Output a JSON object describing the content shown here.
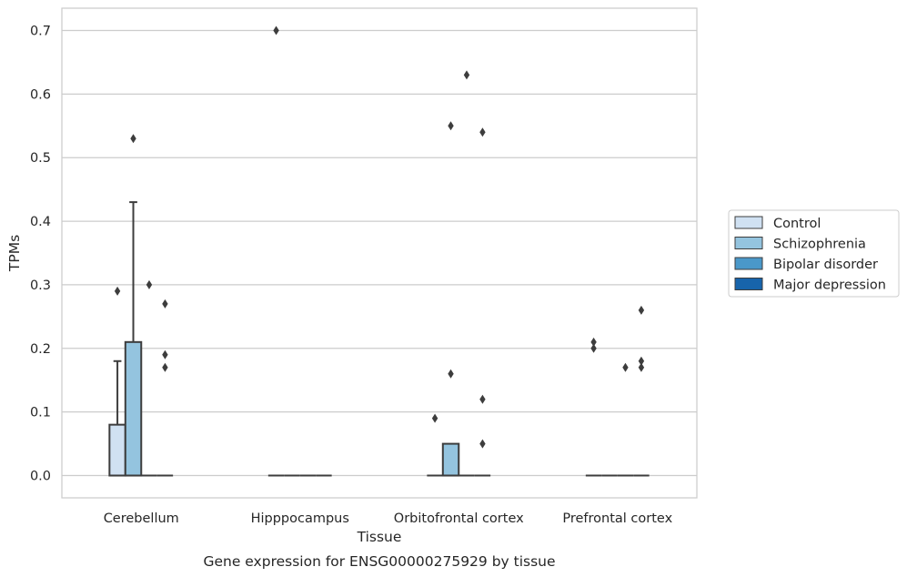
{
  "chart_data": {
    "type": "box",
    "xlabel": "Tissue",
    "ylabel": "TPMs",
    "caption": "Gene expression for ENSG00000275929 by tissue",
    "ylim": [
      -0.035,
      0.735
    ],
    "yticks": [
      0.0,
      0.1,
      0.2,
      0.3,
      0.4,
      0.5,
      0.6,
      0.7
    ],
    "ytick_labels": [
      "0.0",
      "0.1",
      "0.2",
      "0.3",
      "0.4",
      "0.5",
      "0.6",
      "0.7"
    ],
    "grid": "horizontal",
    "legend_position": "right",
    "categories": [
      "Cerebellum",
      "Hipppocampus",
      "Orbitofrontal cortex",
      "Prefrontal cortex"
    ],
    "series": [
      {
        "name": "Control",
        "color": "#d0e1f2",
        "boxes": [
          {
            "q1": 0.0,
            "median": 0.0,
            "q3": 0.08,
            "whisker_low": 0.0,
            "whisker_high": 0.18,
            "outliers": [
              0.29
            ]
          },
          {
            "q1": 0.0,
            "median": 0.0,
            "q3": 0.0,
            "whisker_low": 0.0,
            "whisker_high": 0.0,
            "outliers": [
              0.7
            ]
          },
          {
            "q1": 0.0,
            "median": 0.0,
            "q3": 0.0,
            "whisker_low": 0.0,
            "whisker_high": 0.0,
            "outliers": [
              0.09
            ]
          },
          {
            "q1": 0.0,
            "median": 0.0,
            "q3": 0.0,
            "whisker_low": 0.0,
            "whisker_high": 0.0,
            "outliers": [
              0.2,
              0.21
            ]
          }
        ]
      },
      {
        "name": "Schizophrenia",
        "color": "#94c4df",
        "boxes": [
          {
            "q1": 0.0,
            "median": 0.0,
            "q3": 0.21,
            "whisker_low": 0.0,
            "whisker_high": 0.43,
            "outliers": [
              0.53
            ]
          },
          {
            "q1": 0.0,
            "median": 0.0,
            "q3": 0.0,
            "whisker_low": 0.0,
            "whisker_high": 0.0,
            "outliers": []
          },
          {
            "q1": 0.0,
            "median": 0.0,
            "q3": 0.05,
            "whisker_low": 0.0,
            "whisker_high": 0.05,
            "outliers": [
              0.16,
              0.55
            ]
          },
          {
            "q1": 0.0,
            "median": 0.0,
            "q3": 0.0,
            "whisker_low": 0.0,
            "whisker_high": 0.0,
            "outliers": []
          }
        ]
      },
      {
        "name": "Bipolar disorder",
        "color": "#4a98c9",
        "boxes": [
          {
            "q1": 0.0,
            "median": 0.0,
            "q3": 0.0,
            "whisker_low": 0.0,
            "whisker_high": 0.0,
            "outliers": [
              0.3
            ]
          },
          {
            "q1": 0.0,
            "median": 0.0,
            "q3": 0.0,
            "whisker_low": 0.0,
            "whisker_high": 0.0,
            "outliers": []
          },
          {
            "q1": 0.0,
            "median": 0.0,
            "q3": 0.0,
            "whisker_low": 0.0,
            "whisker_high": 0.0,
            "outliers": [
              0.63
            ]
          },
          {
            "q1": 0.0,
            "median": 0.0,
            "q3": 0.0,
            "whisker_low": 0.0,
            "whisker_high": 0.0,
            "outliers": [
              0.17
            ]
          }
        ]
      },
      {
        "name": "Major depression",
        "color": "#1764ab",
        "boxes": [
          {
            "q1": 0.0,
            "median": 0.0,
            "q3": 0.0,
            "whisker_low": 0.0,
            "whisker_high": 0.0,
            "outliers": [
              0.17,
              0.19,
              0.27
            ]
          },
          {
            "q1": 0.0,
            "median": 0.0,
            "q3": 0.0,
            "whisker_low": 0.0,
            "whisker_high": 0.0,
            "outliers": []
          },
          {
            "q1": 0.0,
            "median": 0.0,
            "q3": 0.0,
            "whisker_low": 0.0,
            "whisker_high": 0.0,
            "outliers": [
              0.05,
              0.12,
              0.54
            ]
          },
          {
            "q1": 0.0,
            "median": 0.0,
            "q3": 0.0,
            "whisker_low": 0.0,
            "whisker_high": 0.0,
            "outliers": [
              0.17,
              0.18,
              0.26
            ]
          }
        ]
      }
    ]
  }
}
